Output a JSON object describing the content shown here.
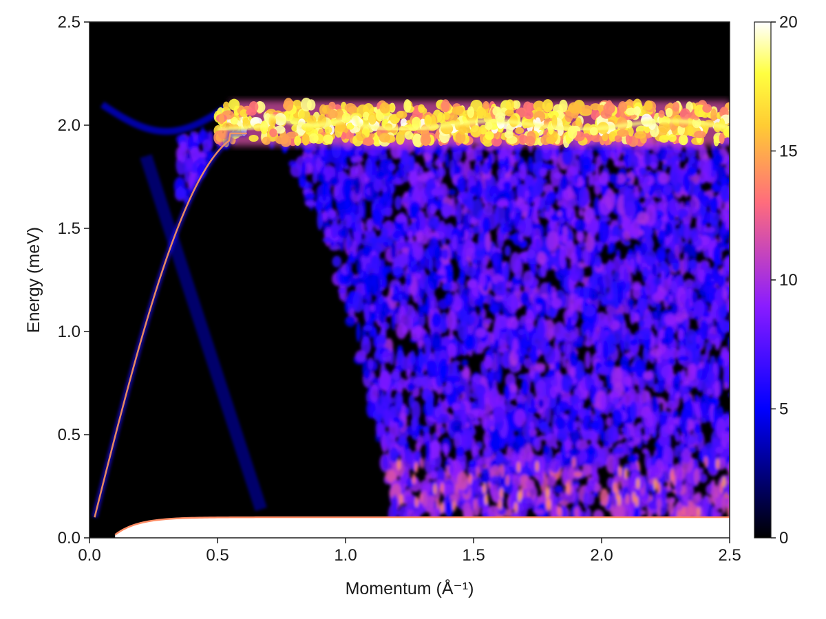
{
  "chart_data": {
    "type": "heatmap",
    "title": "",
    "xlabel": "Momentum (Å⁻¹)",
    "ylabel": "Energy (meV)",
    "xlim": [
      0,
      2.5
    ],
    "ylim": [
      0,
      2.5
    ],
    "x_ticks": [
      "0.0",
      "0.5",
      "1.0",
      "1.5",
      "2.0",
      "2.5"
    ],
    "x_tick_values": [
      0,
      0.5,
      1.0,
      1.5,
      2.0,
      2.5
    ],
    "y_ticks": [
      "0.0",
      "0.5",
      "1.0",
      "1.5",
      "2.0",
      "2.5"
    ],
    "y_tick_values": [
      0,
      0.5,
      1.0,
      1.5,
      2.0,
      2.5
    ],
    "colorbar": {
      "range": [
        0,
        20
      ],
      "ticks": [
        "0",
        "5",
        "10",
        "15",
        "20"
      ],
      "tick_values": [
        0,
        5,
        10,
        15,
        20
      ],
      "colormap": "gnuplot2",
      "colors": [
        "#000000",
        "#0000ff",
        "#8a1cff",
        "#ff6c7c",
        "#ffcc33",
        "#ffff40",
        "#ffffff"
      ]
    },
    "features": {
      "phonon_roton_peak_energy": 2.0,
      "phonon_maximum_momentum": 0.6,
      "roton_minimum_momentum": 1.0,
      "low_energy_cutoff": 0.1,
      "high_energy_plateau": 2.0
    },
    "grid": false
  }
}
